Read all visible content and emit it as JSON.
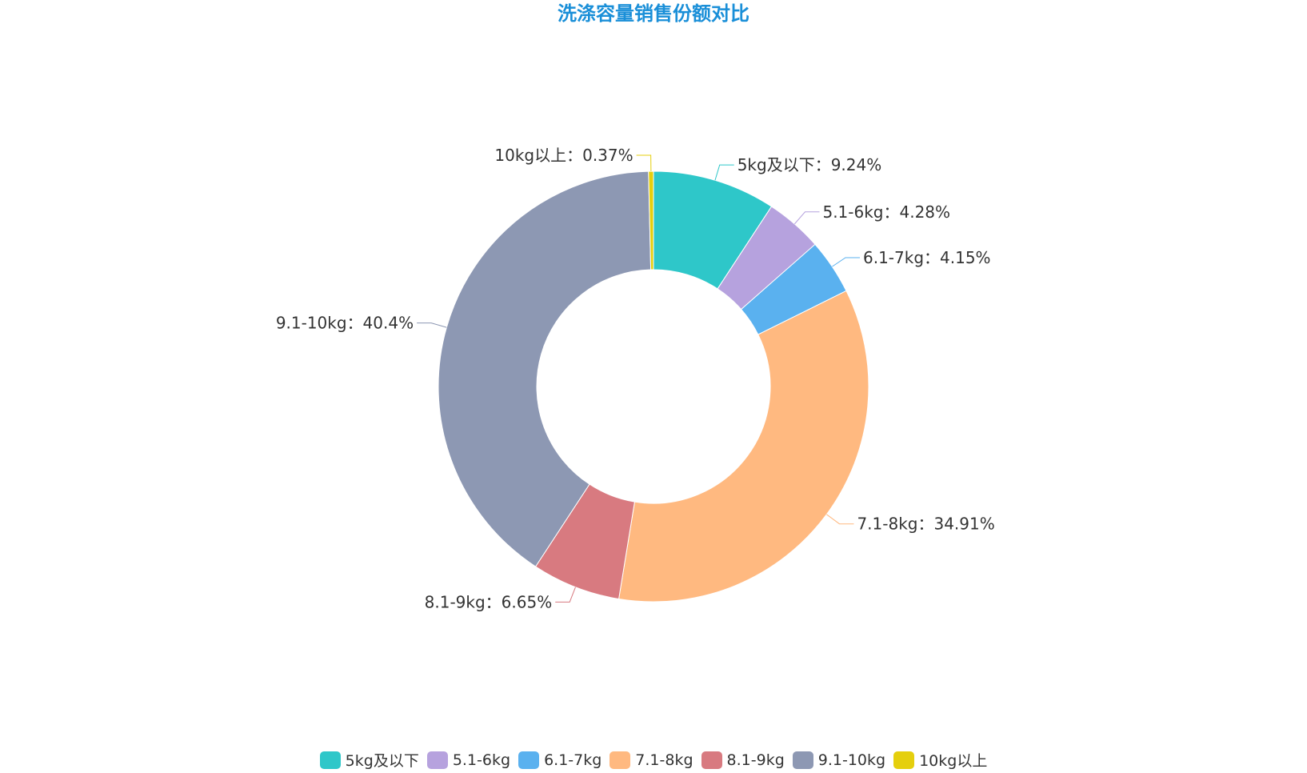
{
  "chart_data": {
    "type": "pie",
    "title": "洗涤容量销售份额对比",
    "donut": true,
    "legend_position": "bottom-center",
    "categories": [
      "5kg及以下",
      "5.1-6kg",
      "6.1-7kg",
      "7.1-8kg",
      "8.1-9kg",
      "9.1-10kg",
      "10kg以上"
    ],
    "values": [
      9.24,
      4.28,
      4.15,
      34.91,
      6.65,
      40.4,
      0.37
    ],
    "value_labels": [
      "9.24%",
      "4.28%",
      "4.15%",
      "34.91%",
      "6.65%",
      "40.4%",
      "0.37%"
    ],
    "colors": [
      "#2ec7c9",
      "#b6a2de",
      "#5ab1ef",
      "#ffb980",
      "#d87a80",
      "#8d98b3",
      "#e5cf0d"
    ],
    "label_separator": "："
  }
}
